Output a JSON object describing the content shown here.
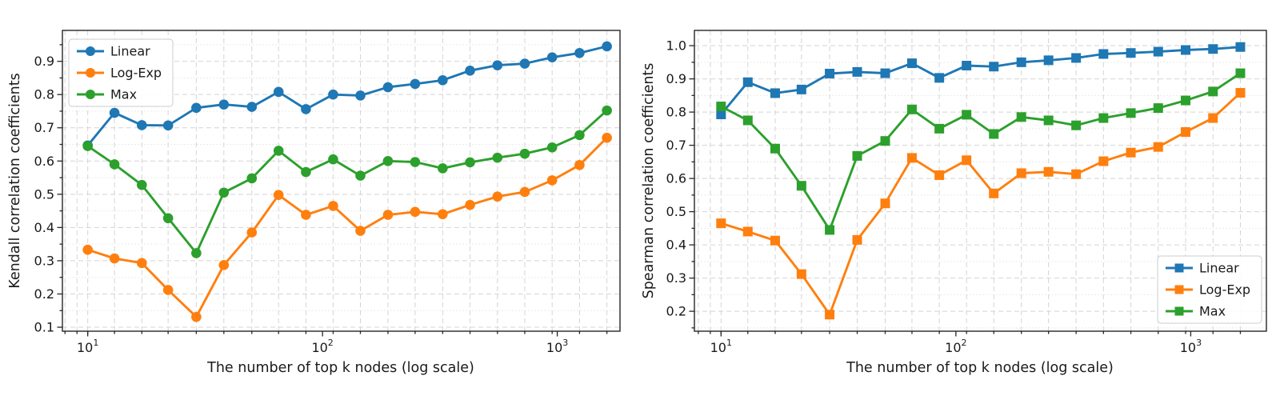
{
  "chart_data": [
    {
      "type": "line",
      "panel": "kendall",
      "xlabel": "The number of top k nodes (log scale)",
      "ylabel": "Kendall correlation coefficients",
      "xscale": "log",
      "marker": "circle",
      "legend_position": "upper-left",
      "grid": true,
      "xlim": [
        7.8,
        1850
      ],
      "ylim": [
        0.088,
        0.993
      ],
      "xticks": [
        10,
        100,
        1000
      ],
      "yticks": [
        0.1,
        0.2,
        0.3,
        0.4,
        0.5,
        0.6,
        0.7,
        0.8,
        0.9
      ],
      "x": [
        10,
        13,
        17,
        22,
        29,
        38,
        50,
        65,
        85,
        111,
        145,
        190,
        248,
        325,
        425,
        556,
        727,
        951,
        1244,
        1627
      ],
      "series": [
        {
          "name": "Linear",
          "color": "#1f77b4",
          "values": [
            0.647,
            0.745,
            0.708,
            0.707,
            0.76,
            0.77,
            0.763,
            0.808,
            0.756,
            0.8,
            0.797,
            0.822,
            0.832,
            0.843,
            0.872,
            0.888,
            0.893,
            0.912,
            0.925,
            0.945
          ]
        },
        {
          "name": "Log-Exp",
          "color": "#ff7f0e",
          "values": [
            0.333,
            0.307,
            0.293,
            0.212,
            0.131,
            0.287,
            0.385,
            0.498,
            0.438,
            0.465,
            0.39,
            0.438,
            0.447,
            0.44,
            0.468,
            0.493,
            0.507,
            0.542,
            0.588,
            0.67
          ]
        },
        {
          "name": "Max",
          "color": "#2ca02c",
          "values": [
            0.645,
            0.59,
            0.528,
            0.428,
            0.323,
            0.505,
            0.548,
            0.631,
            0.567,
            0.605,
            0.556,
            0.6,
            0.597,
            0.578,
            0.596,
            0.61,
            0.622,
            0.641,
            0.678,
            0.752
          ]
        }
      ]
    },
    {
      "type": "line",
      "panel": "spearman",
      "xlabel": "The number of top k nodes (log scale)",
      "ylabel": "Spearman correlation coefficients",
      "xscale": "log",
      "marker": "square",
      "legend_position": "lower-right",
      "grid": true,
      "xlim": [
        7.7,
        2100
      ],
      "ylim": [
        0.14,
        1.046
      ],
      "xticks": [
        10,
        100,
        1000
      ],
      "yticks": [
        0.2,
        0.3,
        0.4,
        0.5,
        0.6,
        0.7,
        0.8,
        0.9,
        1.0
      ],
      "x": [
        10,
        13,
        17,
        22,
        29,
        38,
        50,
        65,
        85,
        111,
        145,
        190,
        248,
        325,
        425,
        556,
        727,
        951,
        1244,
        1627
      ],
      "series": [
        {
          "name": "Linear",
          "color": "#1f77b4",
          "values": [
            0.793,
            0.89,
            0.857,
            0.868,
            0.916,
            0.921,
            0.917,
            0.947,
            0.903,
            0.94,
            0.937,
            0.95,
            0.956,
            0.963,
            0.975,
            0.978,
            0.982,
            0.987,
            0.99,
            0.996
          ]
        },
        {
          "name": "Log-Exp",
          "color": "#ff7f0e",
          "values": [
            0.465,
            0.44,
            0.413,
            0.312,
            0.19,
            0.415,
            0.525,
            0.662,
            0.61,
            0.655,
            0.555,
            0.616,
            0.62,
            0.613,
            0.652,
            0.678,
            0.695,
            0.74,
            0.782,
            0.858
          ]
        },
        {
          "name": "Max",
          "color": "#2ca02c",
          "values": [
            0.817,
            0.775,
            0.69,
            0.578,
            0.445,
            0.668,
            0.713,
            0.808,
            0.75,
            0.792,
            0.734,
            0.785,
            0.775,
            0.76,
            0.782,
            0.797,
            0.812,
            0.835,
            0.862,
            0.917
          ]
        }
      ]
    }
  ]
}
